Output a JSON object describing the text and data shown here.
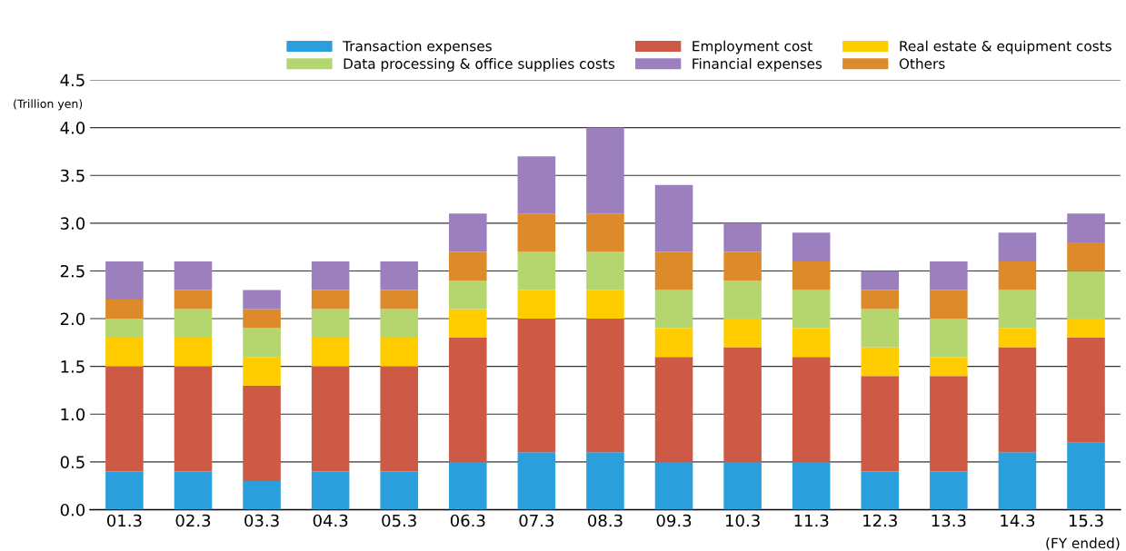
{
  "chart_data": {
    "type": "bar",
    "stacked": true,
    "ylabel": "(Trillion yen)",
    "categories": [
      "01.3",
      "02.3",
      "03.3",
      "04.3",
      "05.3",
      "06.3",
      "07.3",
      "08.3",
      "09.3",
      "10.3",
      "11.3",
      "12.3",
      "13.3",
      "14.3",
      "15.3"
    ],
    "series": [
      {
        "name": "Transaction expenses",
        "color": "#2a9fdc",
        "values": [
          0.4,
          0.4,
          0.3,
          0.4,
          0.4,
          0.5,
          0.6,
          0.6,
          0.5,
          0.5,
          0.5,
          0.4,
          0.4,
          0.6,
          0.7
        ]
      },
      {
        "name": "Employment cost",
        "color": "#cc5a45",
        "values": [
          1.1,
          1.1,
          1.0,
          1.1,
          1.1,
          1.3,
          1.4,
          1.4,
          1.1,
          1.2,
          1.1,
          1.0,
          1.0,
          1.1,
          1.1
        ]
      },
      {
        "name": "Real estate & equipment costs",
        "color": "#ffcc00",
        "values": [
          0.3,
          0.3,
          0.3,
          0.3,
          0.3,
          0.3,
          0.3,
          0.3,
          0.3,
          0.3,
          0.3,
          0.3,
          0.2,
          0.2,
          0.2
        ]
      },
      {
        "name": "Data processing & office supplies costs",
        "color": "#b5d56f",
        "values": [
          0.2,
          0.3,
          0.3,
          0.3,
          0.3,
          0.3,
          0.4,
          0.4,
          0.4,
          0.4,
          0.4,
          0.4,
          0.4,
          0.4,
          0.5
        ]
      },
      {
        "name": "Others",
        "color": "#dd8a2a",
        "values": [
          0.2,
          0.2,
          0.2,
          0.2,
          0.2,
          0.3,
          0.4,
          0.4,
          0.4,
          0.3,
          0.3,
          0.2,
          0.3,
          0.3,
          0.3
        ]
      },
      {
        "name": "Financial expenses",
        "color": "#9b80bd",
        "values": [
          0.4,
          0.3,
          0.2,
          0.3,
          0.3,
          0.4,
          0.6,
          0.9,
          0.7,
          0.3,
          0.3,
          0.2,
          0.3,
          0.3,
          0.3
        ]
      }
    ],
    "ylim": [
      0,
      4.5
    ],
    "yticks": [
      {
        "value": 0,
        "label": "0.0"
      },
      {
        "value": 0.5,
        "label": "0.5"
      },
      {
        "value": 1,
        "label": "1.0"
      },
      {
        "value": 1.5,
        "label": "1.5"
      },
      {
        "value": 2,
        "label": "2.0"
      },
      {
        "value": 2.5,
        "label": "2.5"
      },
      {
        "value": 3,
        "label": "3.0"
      },
      {
        "value": 3.5,
        "label": "3.5"
      },
      {
        "value": 4,
        "label": "4.0"
      },
      {
        "value": 4.5,
        "label": "4.5"
      }
    ],
    "grid": "y",
    "legend": "top",
    "annotations": [
      "(FY ended)"
    ]
  }
}
